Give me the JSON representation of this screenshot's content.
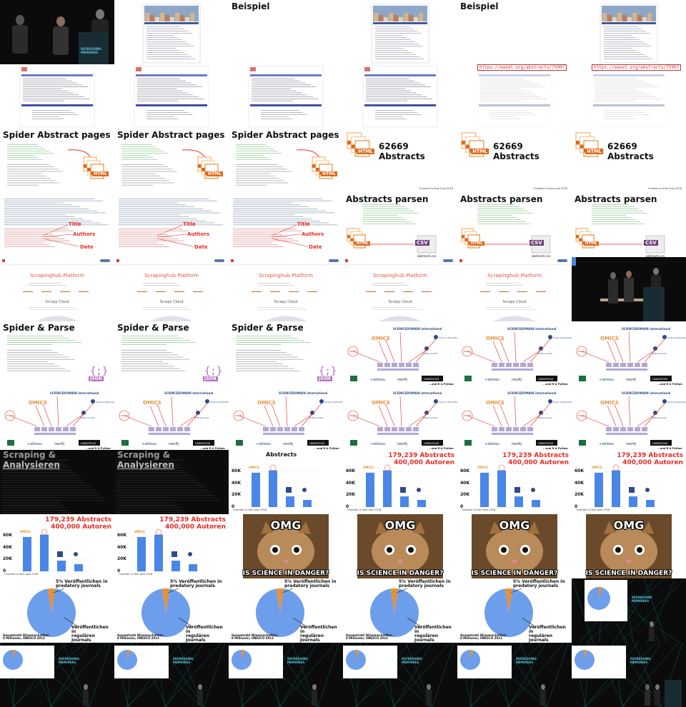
{
  "labels": {
    "beispiel": "Beispiel",
    "url": "https://waset.org/abstracts/75907",
    "spider_abstract": "Spider Abstract pages",
    "abstracts_count": "62669 Abstracts",
    "stand": "*number is from June 2018",
    "abstracts_parsen": "Abstracts parsen",
    "csv": "CSV",
    "abstracts_csv": "abstracts.csv",
    "html": "HTML",
    "json": "JSON",
    "title": "Title",
    "authors": "Authors",
    "date": "Date",
    "scrapinghub": "Scrapinghub Platform",
    "scrapy_cloud": "Scrapy Cloud",
    "spider_parse": "Spider & Parse",
    "python_note": "...and R & Python",
    "scraping_a": "Scraping & ",
    "scraping_b": "Analysieren",
    "abstracts": "Abstracts",
    "stat1": "179,239 Abstracts",
    "stat2": "400,000 Autoren",
    "y60": "60K",
    "y40": "40K",
    "y20": "20K",
    "y0": "0",
    "omg": "OMG",
    "science": "IS SCIENCE IN DANGER?",
    "pie_a1": "5% Veröffentlichen in",
    "pie_a2": "predatory journals",
    "pie_b1": "Veröffentlichen in",
    "pie_b2": "regulären Journals",
    "pie_c1": "Gesamtzahl Wissenschaftler:",
    "pie_c2": "8 Millionen, UNESCO 2013",
    "refreshing": "REFRESHING",
    "memories": "MEMORIES",
    "omics": "OMICS",
    "waset": "WASET",
    "iosr": "IOSR Journals",
    "science_pub": "Science Publications",
    "sciencedomain": "SCIENCEDOMAIN international",
    "tableau": "+ableau",
    "neo4j": "neo4j",
    "linkurious": "LINKURIOUS"
  },
  "colors": {
    "bar": "#4a86e8",
    "pie_main": "#6d9eeb",
    "pie_slice": "#e69138",
    "accent": "#e52c24",
    "csv": "#6d3c79",
    "html": "#e06818"
  },
  "chart_data": [
    {
      "type": "bar",
      "title": "Abstracts",
      "categories": [
        "WASET",
        "OMICS",
        "IOSR",
        "Science Publications"
      ],
      "values": [
        58000,
        62000,
        18000,
        12000
      ],
      "ylim": [
        0,
        70000
      ],
      "ticks": [
        "0",
        "20K",
        "40K",
        "60K"
      ]
    },
    {
      "type": "pie",
      "values": [
        5,
        95
      ],
      "labels": [
        "5% Veröffentlichen in predatory journals",
        "Veröffentlichen in regulären Journals"
      ]
    }
  ],
  "cells": [
    "stage1",
    "beispiel",
    "stage1b",
    "beispiel",
    "stage1b",
    "beispiel",
    "url0",
    "url0",
    "doc",
    "doc",
    "urlr",
    "urlr",
    "spider",
    "spider",
    "spider",
    "count",
    "count",
    "count",
    "parsecode",
    "parsecode",
    "parsecode",
    "parsecsv",
    "parsecsv",
    "parsecsv",
    "scrapinghub",
    "scrapinghub",
    "scrapinghub",
    "scrapinghub",
    "scrapinghub",
    "stage2",
    "spiderparse",
    "spiderparse",
    "spiderparse",
    "net",
    "net",
    "net",
    "net",
    "net",
    "net",
    "net",
    "net",
    "net",
    "scraping",
    "scraping",
    "bar0",
    "bar",
    "bar",
    "bar",
    "bar",
    "bar",
    "meme",
    "meme",
    "meme",
    "meme",
    "pie",
    "pie",
    "pie",
    "pie",
    "pie",
    "stage3",
    "stage4",
    "stage4",
    "stage4",
    "stage4",
    "stage4",
    "stage5"
  ]
}
